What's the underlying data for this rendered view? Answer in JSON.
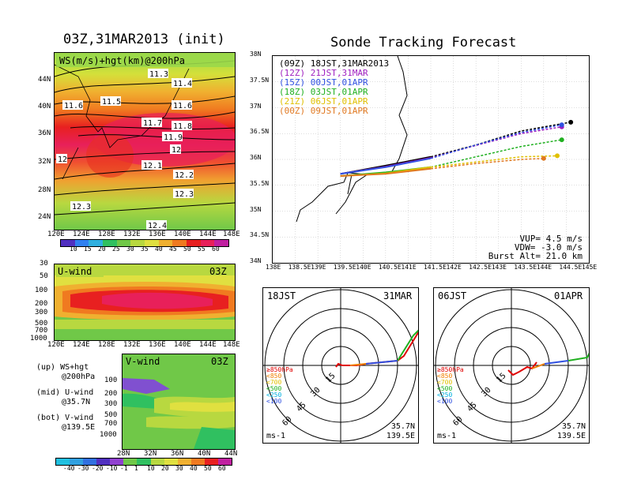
{
  "left": {
    "title": "03Z,31MAR2013 (init)",
    "top_panel": {
      "label": "WS(m/s)+hgt(km)@200hPa",
      "lat_ticks": [
        "44N",
        "40N",
        "36N",
        "32N",
        "28N",
        "24N"
      ],
      "lon_ticks": [
        "120E",
        "124E",
        "128E",
        "132E",
        "136E",
        "140E",
        "144E",
        "148E"
      ],
      "contour_labels": [
        "11.3",
        "11.4",
        "11.5",
        "11.6",
        "11.6",
        "11.7",
        "11.8",
        "11.9",
        "12",
        "12",
        "12.1",
        "12.2",
        "12.3",
        "12.3",
        "12.4"
      ],
      "colorbar_ticks": [
        "10",
        "15",
        "20",
        "25",
        "30",
        "35",
        "40",
        "45",
        "50",
        "55",
        "60"
      ]
    },
    "mid_panel": {
      "label": "U-wind",
      "time": "03Z",
      "p_ticks": [
        "30",
        "50",
        "100",
        "200",
        "300",
        "500",
        "700",
        "1000"
      ],
      "lon_ticks": [
        "120E",
        "124E",
        "128E",
        "132E",
        "136E",
        "140E",
        "144E",
        "148E"
      ]
    },
    "bot_panel": {
      "label": "V-wind",
      "time": "03Z",
      "p_ticks": [
        "100",
        "200",
        "300",
        "500",
        "700",
        "1000"
      ],
      "lat_ticks": [
        "28N",
        "32N",
        "36N",
        "40N",
        "44N"
      ],
      "colorbar_ticks": [
        "-40",
        "-30",
        "-20",
        "-10",
        "-1",
        "1",
        "10",
        "20",
        "30",
        "40",
        "50",
        "60"
      ]
    },
    "legend": [
      {
        "line1": "(up) WS+hgt",
        "line2": "@200hPa"
      },
      {
        "line1": "(mid) U-wind",
        "line2": "@35.7N"
      },
      {
        "line1": "(bot) V-wind",
        "line2": "@139.5E"
      }
    ]
  },
  "right": {
    "title": "Sonde Tracking Forecast",
    "map": {
      "lat_ticks": [
        "38N",
        "37.5N",
        "37N",
        "36.5N",
        "36N",
        "35.5N",
        "35N",
        "34.5N",
        "34N"
      ],
      "lon_ticks": [
        "138E",
        "138.5E",
        "139E",
        "139.5E",
        "140E",
        "140.5E",
        "141E",
        "141.5E",
        "142E",
        "142.5E",
        "143E",
        "143.5E",
        "144E",
        "144.5E",
        "145E"
      ],
      "launches": [
        {
          "utc": "(09Z)",
          "jst": "18JST,31MAR2013",
          "color": "#000000"
        },
        {
          "utc": "(12Z)",
          "jst": "21JST,31MAR",
          "color": "#a020c0"
        },
        {
          "utc": "(15Z)",
          "jst": "00JST,01APR",
          "color": "#3050e0"
        },
        {
          "utc": "(18Z)",
          "jst": "03JST,01APR",
          "color": "#20b020"
        },
        {
          "utc": "(21Z)",
          "jst": "06JST,01APR",
          "color": "#e0c000"
        },
        {
          "utc": "(00Z)",
          "jst": "09JST,01APR",
          "color": "#e07820"
        }
      ],
      "vup": "VUP= 4.5 m/s",
      "vdw": "VDW= -3.0 m/s",
      "burst": "Burst Alt= 21.0 km"
    },
    "hodo1": {
      "time": "18JST",
      "date": "31MAR",
      "lat": "35.7N",
      "lon": "139.5E",
      "unit": "ms-1"
    },
    "hodo2": {
      "time": "06JST",
      "date": "01APR",
      "lat": "35.7N",
      "lon": "139.5E",
      "unit": "ms-1"
    },
    "hodo_rings": [
      "15",
      "30",
      "45",
      "60"
    ],
    "hodo_legend": [
      {
        "text": "≥850hPa",
        "color": "#e00000"
      },
      {
        "text": "<850",
        "color": "#f08000"
      },
      {
        "text": "<700",
        "color": "#e0c000"
      },
      {
        "text": "<500",
        "color": "#20b020"
      },
      {
        "text": "<250",
        "color": "#00b0e0"
      },
      {
        "text": "<100",
        "color": "#3050e0"
      }
    ]
  },
  "chart_data": [
    {
      "type": "heatmap",
      "title": "WS(m/s)+hgt(km)@200hPa",
      "xlim": [
        "120E",
        "148E"
      ],
      "ylim": [
        "22N",
        "47N"
      ],
      "colorbar": [
        10,
        15,
        20,
        25,
        30,
        35,
        40,
        45,
        50,
        55,
        60
      ]
    },
    {
      "type": "line",
      "title": "Sonde Tracking Forecast",
      "xlim": [
        138,
        145
      ],
      "ylim": [
        34,
        38
      ],
      "series": [
        {
          "name": "(09Z) 18JST,31MAR2013",
          "x": [
            139.5,
            140.5,
            141.5,
            142.5,
            143.5,
            144.6
          ],
          "y": [
            35.72,
            35.88,
            36.05,
            36.28,
            36.55,
            36.72
          ]
        },
        {
          "name": "(12Z) 21JST,31MAR",
          "x": [
            139.5,
            140.5,
            141.5,
            142.5,
            143.5,
            144.4
          ],
          "y": [
            35.72,
            35.86,
            36.03,
            36.27,
            36.5,
            36.63
          ]
        },
        {
          "name": "(15Z) 00JST,01APR",
          "x": [
            139.5,
            140.5,
            141.5,
            142.5,
            143.5,
            144.4
          ],
          "y": [
            35.72,
            35.85,
            36.02,
            36.28,
            36.52,
            36.67
          ]
        },
        {
          "name": "(18Z) 03JST,01APR",
          "x": [
            139.5,
            140.5,
            141.5,
            142.5,
            143.5,
            144.4
          ],
          "y": [
            35.68,
            35.75,
            35.85,
            36.05,
            36.25,
            36.38
          ]
        },
        {
          "name": "(21Z) 06JST,01APR",
          "x": [
            139.5,
            140.5,
            141.5,
            142.5,
            143.5,
            144.3
          ],
          "y": [
            35.68,
            35.73,
            35.85,
            35.95,
            36.05,
            36.07
          ]
        },
        {
          "name": "(00Z) 09JST,01APR",
          "x": [
            139.5,
            140.5,
            141.5,
            142.5,
            143.5,
            144.0
          ],
          "y": [
            35.68,
            35.72,
            35.82,
            35.92,
            36.0,
            36.02
          ]
        }
      ]
    }
  ]
}
